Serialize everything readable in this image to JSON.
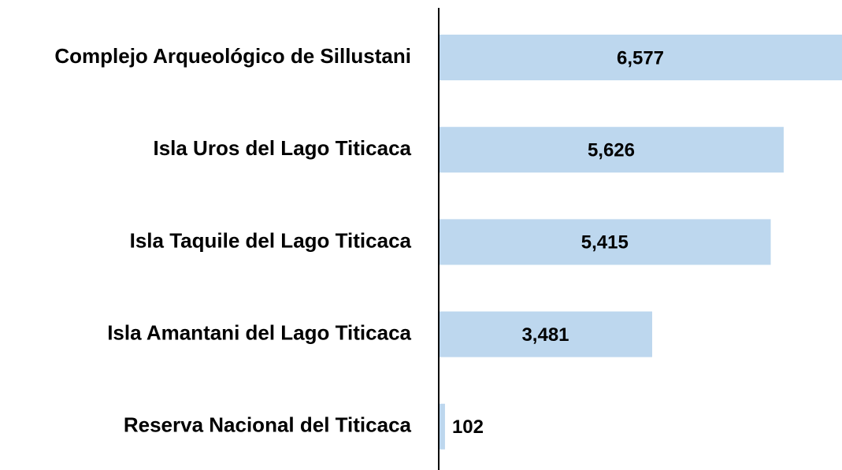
{
  "chart_data": {
    "type": "bar",
    "orientation": "horizontal",
    "categories": [
      "Complejo Arqueológico de Sillustani",
      "Isla Uros del Lago Titicaca",
      "Isla Taquile del Lago Titicaca",
      "Isla Amantani del Lago Titicaca",
      "Reserva Nacional del Titicaca"
    ],
    "values": [
      6577,
      5626,
      5415,
      3481,
      102
    ],
    "value_labels": [
      "6,577",
      "5,626",
      "5,415",
      "3,481",
      "102"
    ],
    "color": "#bdd7ee"
  }
}
